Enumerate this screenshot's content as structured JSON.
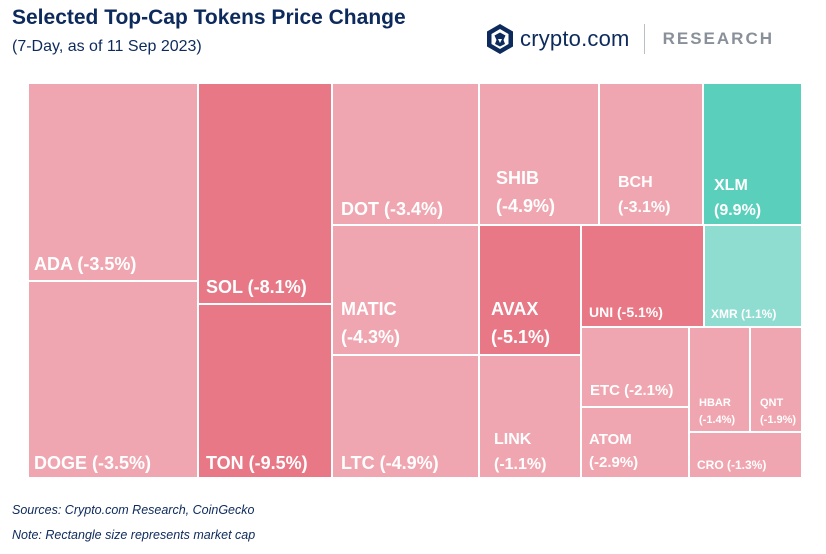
{
  "header": {
    "title": "Selected Top-Cap Tokens Price Change",
    "subtitle": "(7-Day, as of 11 Sep 2023)"
  },
  "brand": {
    "name": "crypto.com",
    "tag": "RESEARCH",
    "logo_icon": "crypto-com-lion-shield-icon"
  },
  "footer": {
    "sources": "Sources: Crypto.com Research, CoinGecko",
    "note": "Note: Rectangle size represents market cap"
  },
  "colors": {
    "down_light": "#f0a6b0",
    "down_strong": "#e87886",
    "up_strong": "#59cfbc",
    "up_light": "#8fdcd0",
    "border": "#ffffff",
    "text_dark": "#0d2a5c"
  },
  "chart_data": {
    "type": "treemap",
    "title": "Selected Top-Cap Tokens Price Change",
    "subtitle": "(7-Day, as of 11 Sep 2023)",
    "items": [
      {
        "token": "ADA",
        "label": "ADA (-3.5%)",
        "change_pct": -3.5
      },
      {
        "token": "DOGE",
        "label": "DOGE (-3.5%)",
        "change_pct": -3.5
      },
      {
        "token": "SOL",
        "label": "SOL (-8.1%)",
        "change_pct": -8.1
      },
      {
        "token": "TON",
        "label": "TON (-9.5%)",
        "change_pct": -9.5
      },
      {
        "token": "DOT",
        "label": "DOT (-3.4%)",
        "change_pct": -3.4
      },
      {
        "token": "MATIC",
        "label": "MATIC\n(-4.3%)",
        "change_pct": -4.3
      },
      {
        "token": "LTC",
        "label": "LTC (-4.9%)",
        "change_pct": -4.9
      },
      {
        "token": "SHIB",
        "label": "SHIB\n(-4.9%)",
        "change_pct": -4.9
      },
      {
        "token": "AVAX",
        "label": "AVAX\n(-5.1%)",
        "change_pct": -5.1
      },
      {
        "token": "LINK",
        "label": "LINK\n(-1.1%)",
        "change_pct": -1.1
      },
      {
        "token": "BCH",
        "label": "BCH\n(-3.1%)",
        "change_pct": -3.1
      },
      {
        "token": "XLM",
        "label": "XLM\n(9.9%)",
        "change_pct": 9.9
      },
      {
        "token": "UNI",
        "label": "UNI (-5.1%)",
        "change_pct": -5.1
      },
      {
        "token": "XMR",
        "label": "XMR (1.1%)",
        "change_pct": 1.1
      },
      {
        "token": "ETC",
        "label": "ETC (-2.1%)",
        "change_pct": -2.1
      },
      {
        "token": "ATOM",
        "label": "ATOM\n(-2.9%)",
        "change_pct": -2.9
      },
      {
        "token": "HBAR",
        "label": "HBAR\n(-1.4%)",
        "change_pct": -1.4
      },
      {
        "token": "QNT",
        "label": "QNT\n(-1.9%)",
        "change_pct": -1.9
      },
      {
        "token": "CRO",
        "label": "CRO (-1.3%)",
        "change_pct": -1.3
      }
    ]
  }
}
